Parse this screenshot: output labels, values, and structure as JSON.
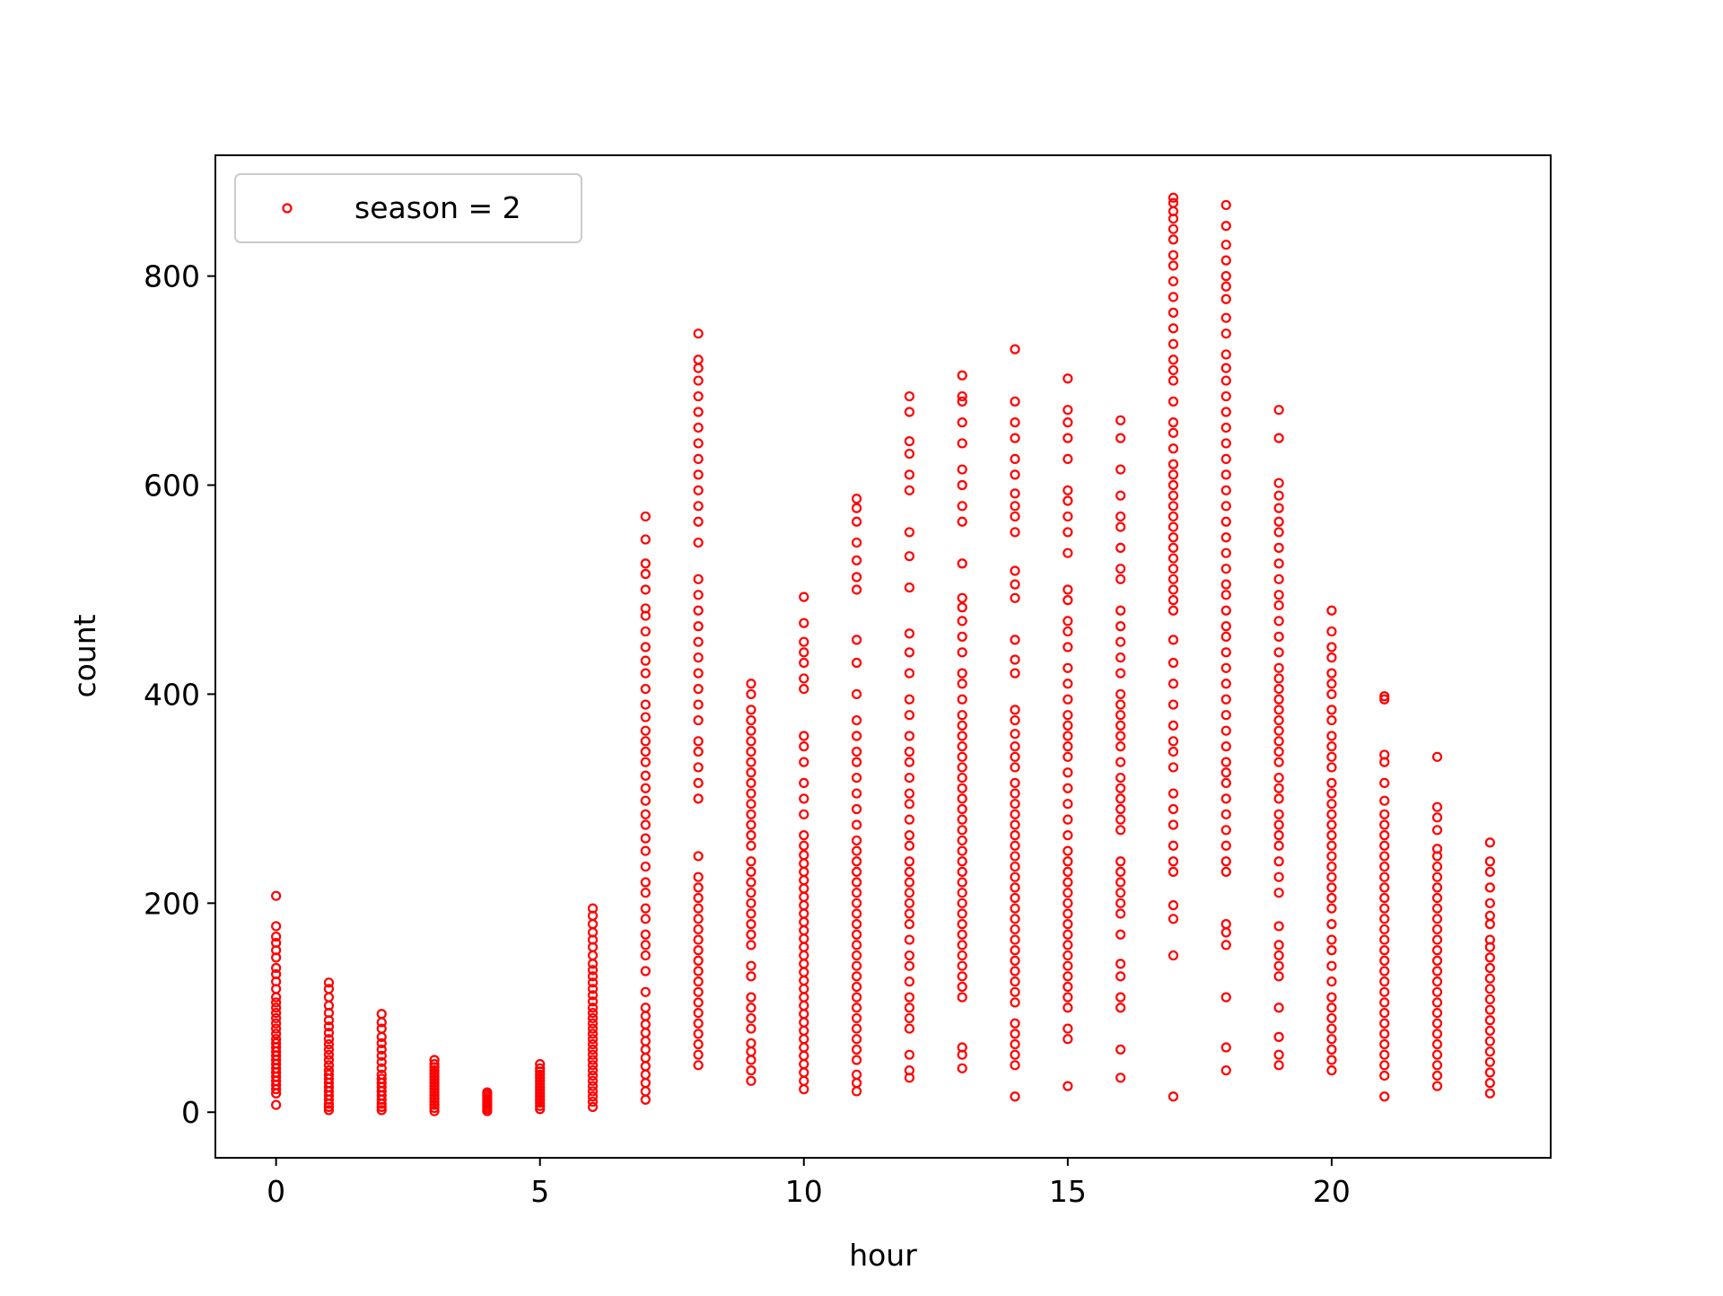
{
  "chart_data": {
    "type": "scatter",
    "title": "",
    "xlabel": "hour",
    "ylabel": "count",
    "xlim": [
      -1.15,
      24.15
    ],
    "ylim": [
      -43.6,
      915.6
    ],
    "xticks": [
      0,
      5,
      10,
      15,
      20
    ],
    "yticks": [
      0,
      200,
      400,
      600,
      800
    ],
    "grid": false,
    "legend": {
      "position": "upper left",
      "entries": [
        "season = 2"
      ]
    },
    "marker": {
      "shape": "hollow circle",
      "color": "#ff0000"
    },
    "series": [
      {
        "name": "season = 2",
        "color": "#ff0000",
        "points_by_hour": [
          {
            "x": 0,
            "ys": [
              7,
              18,
              22,
              26,
              30,
              34,
              38,
              42,
              46,
              50,
              54,
              58,
              62,
              66,
              70,
              75,
              80,
              85,
              90,
              95,
              100,
              105,
              110,
              118,
              125,
              132,
              138,
              148,
              155,
              162,
              168,
              178,
              207
            ]
          },
          {
            "x": 1,
            "ys": [
              2,
              5,
              8,
              12,
              16,
              20,
              24,
              28,
              32,
              36,
              40,
              45,
              50,
              55,
              60,
              65,
              70,
              76,
              82,
              88,
              95,
              102,
              110,
              118,
              124
            ]
          },
          {
            "x": 2,
            "ys": [
              2,
              5,
              8,
              12,
              16,
              20,
              24,
              28,
              32,
              36,
              42,
              48,
              54,
              60,
              66,
              72,
              80,
              86,
              94
            ]
          },
          {
            "x": 3,
            "ys": [
              1,
              4,
              7,
              10,
              13,
              16,
              19,
              22,
              25,
              28,
              31,
              34,
              37,
              40,
              43,
              46,
              50
            ]
          },
          {
            "x": 4,
            "ys": [
              1,
              3,
              5,
              7,
              9,
              11,
              13,
              15,
              17,
              19
            ]
          },
          {
            "x": 5,
            "ys": [
              3,
              6,
              9,
              12,
              15,
              18,
              21,
              24,
              27,
              30,
              33,
              36,
              39,
              42,
              46
            ]
          },
          {
            "x": 6,
            "ys": [
              5,
              10,
              15,
              20,
              25,
              30,
              35,
              40,
              45,
              50,
              55,
              60,
              65,
              70,
              75,
              80,
              85,
              90,
              95,
              100,
              106,
              112,
              118,
              124,
              130,
              136,
              142,
              150,
              158,
              165,
              172,
              180,
              188,
              195
            ]
          },
          {
            "x": 7,
            "ys": [
              12,
              20,
              28,
              36,
              44,
              52,
              60,
              68,
              76,
              84,
              92,
              100,
              115,
              135,
              150,
              160,
              170,
              185,
              195,
              210,
              220,
              235,
              250,
              262,
              275,
              285,
              298,
              310,
              322,
              335,
              345,
              355,
              365,
              378,
              390,
              405,
              420,
              432,
              445,
              460,
              475,
              482,
              500,
              515,
              525,
              548,
              570
            ]
          },
          {
            "x": 8,
            "ys": [
              45,
              55,
              65,
              75,
              85,
              95,
              105,
              115,
              125,
              135,
              145,
              155,
              165,
              175,
              185,
              195,
              205,
              215,
              225,
              245,
              300,
              315,
              330,
              345,
              355,
              375,
              390,
              405,
              420,
              435,
              450,
              465,
              480,
              495,
              510,
              545,
              565,
              580,
              595,
              610,
              625,
              640,
              655,
              670,
              685,
              700,
              712,
              720,
              745
            ]
          },
          {
            "x": 9,
            "ys": [
              30,
              40,
              50,
              58,
              66,
              80,
              90,
              100,
              110,
              130,
              140,
              160,
              170,
              180,
              190,
              200,
              210,
              220,
              230,
              240,
              255,
              265,
              275,
              285,
              295,
              305,
              315,
              325,
              335,
              345,
              355,
              365,
              375,
              385,
              400,
              410
            ]
          },
          {
            "x": 10,
            "ys": [
              22,
              30,
              38,
              46,
              54,
              62,
              70,
              78,
              86,
              94,
              102,
              110,
              118,
              126,
              134,
              142,
              150,
              158,
              166,
              174,
              182,
              190,
              198,
              206,
              214,
              222,
              230,
              238,
              246,
              255,
              265,
              285,
              300,
              315,
              335,
              350,
              360,
              405,
              415,
              430,
              440,
              450,
              468,
              493
            ]
          },
          {
            "x": 11,
            "ys": [
              20,
              28,
              36,
              50,
              60,
              70,
              80,
              90,
              100,
              110,
              120,
              130,
              140,
              150,
              160,
              170,
              180,
              190,
              200,
              210,
              220,
              230,
              240,
              250,
              260,
              275,
              290,
              305,
              320,
              335,
              345,
              360,
              375,
              400,
              430,
              452,
              500,
              512,
              528,
              545,
              565,
              578,
              587
            ]
          },
          {
            "x": 12,
            "ys": [
              33,
              40,
              55,
              80,
              90,
              100,
              110,
              125,
              140,
              150,
              165,
              180,
              190,
              200,
              210,
              220,
              230,
              240,
              255,
              265,
              280,
              295,
              305,
              320,
              335,
              345,
              360,
              380,
              395,
              420,
              440,
              458,
              502,
              532,
              555,
              595,
              610,
              630,
              642,
              670,
              685
            ]
          },
          {
            "x": 13,
            "ys": [
              42,
              55,
              62,
              110,
              120,
              130,
              140,
              150,
              160,
              170,
              180,
              190,
              200,
              210,
              220,
              230,
              240,
              250,
              260,
              270,
              280,
              290,
              300,
              310,
              320,
              330,
              340,
              350,
              360,
              370,
              380,
              395,
              410,
              420,
              440,
              455,
              470,
              483,
              492,
              525,
              565,
              580,
              600,
              615,
              640,
              660,
              680,
              685,
              705
            ]
          },
          {
            "x": 14,
            "ys": [
              15,
              45,
              55,
              65,
              75,
              85,
              105,
              115,
              125,
              135,
              145,
              155,
              165,
              175,
              185,
              195,
              205,
              215,
              225,
              235,
              245,
              255,
              265,
              275,
              285,
              295,
              305,
              315,
              330,
              340,
              350,
              362,
              375,
              385,
              420,
              433,
              452,
              492,
              505,
              518,
              555,
              570,
              580,
              592,
              610,
              625,
              645,
              660,
              680,
              730
            ]
          },
          {
            "x": 15,
            "ys": [
              25,
              70,
              80,
              100,
              110,
              120,
              130,
              140,
              150,
              160,
              170,
              180,
              190,
              200,
              210,
              220,
              230,
              240,
              250,
              265,
              280,
              295,
              310,
              325,
              340,
              350,
              360,
              370,
              380,
              395,
              410,
              425,
              445,
              460,
              470,
              490,
              500,
              535,
              555,
              570,
              585,
              595,
              625,
              645,
              660,
              672,
              702
            ]
          },
          {
            "x": 16,
            "ys": [
              33,
              60,
              100,
              110,
              130,
              142,
              170,
              190,
              200,
              210,
              220,
              230,
              240,
              270,
              280,
              290,
              300,
              310,
              320,
              335,
              350,
              360,
              370,
              380,
              390,
              400,
              420,
              435,
              450,
              465,
              480,
              510,
              520,
              540,
              560,
              570,
              590,
              615,
              645,
              662
            ]
          },
          {
            "x": 17,
            "ys": [
              15,
              150,
              185,
              198,
              230,
              240,
              255,
              275,
              290,
              305,
              330,
              345,
              355,
              370,
              390,
              410,
              430,
              452,
              480,
              490,
              500,
              510,
              520,
              530,
              540,
              550,
              560,
              570,
              580,
              590,
              600,
              610,
              620,
              635,
              650,
              660,
              680,
              700,
              710,
              720,
              735,
              750,
              765,
              780,
              795,
              810,
              820,
              835,
              845,
              855,
              862,
              870,
              875
            ]
          },
          {
            "x": 18,
            "ys": [
              40,
              62,
              110,
              160,
              172,
              180,
              230,
              240,
              255,
              270,
              285,
              300,
              315,
              325,
              335,
              350,
              365,
              380,
              395,
              410,
              425,
              440,
              455,
              465,
              480,
              495,
              505,
              520,
              535,
              550,
              565,
              580,
              595,
              610,
              625,
              640,
              655,
              670,
              685,
              700,
              712,
              725,
              745,
              760,
              778,
              790,
              800,
              815,
              830,
              848,
              868
            ]
          },
          {
            "x": 19,
            "ys": [
              45,
              55,
              72,
              100,
              130,
              140,
              150,
              160,
              178,
              210,
              225,
              240,
              255,
              265,
              275,
              285,
              300,
              310,
              320,
              335,
              345,
              355,
              365,
              375,
              385,
              395,
              405,
              415,
              425,
              440,
              455,
              470,
              485,
              495,
              510,
              525,
              540,
              555,
              565,
              578,
              590,
              602,
              645,
              672
            ]
          },
          {
            "x": 20,
            "ys": [
              40,
              50,
              60,
              70,
              80,
              90,
              100,
              110,
              125,
              140,
              155,
              165,
              180,
              195,
              205,
              215,
              225,
              235,
              245,
              255,
              265,
              275,
              285,
              295,
              305,
              315,
              330,
              340,
              350,
              360,
              375,
              385,
              400,
              410,
              420,
              435,
              445,
              460,
              480
            ]
          },
          {
            "x": 21,
            "ys": [
              15,
              35,
              45,
              55,
              65,
              75,
              85,
              95,
              105,
              115,
              125,
              135,
              145,
              155,
              165,
              175,
              185,
              195,
              205,
              215,
              225,
              235,
              245,
              255,
              265,
              275,
              285,
              298,
              315,
              335,
              342,
              395,
              398
            ]
          },
          {
            "x": 22,
            "ys": [
              25,
              35,
              45,
              55,
              65,
              75,
              85,
              95,
              105,
              115,
              125,
              135,
              145,
              155,
              165,
              175,
              185,
              195,
              205,
              215,
              225,
              235,
              245,
              252,
              270,
              282,
              292,
              340
            ]
          },
          {
            "x": 23,
            "ys": [
              18,
              28,
              38,
              48,
              58,
              68,
              78,
              88,
              98,
              108,
              118,
              128,
              138,
              148,
              158,
              165,
              180,
              188,
              200,
              215,
              230,
              240,
              258
            ]
          }
        ]
      }
    ]
  }
}
